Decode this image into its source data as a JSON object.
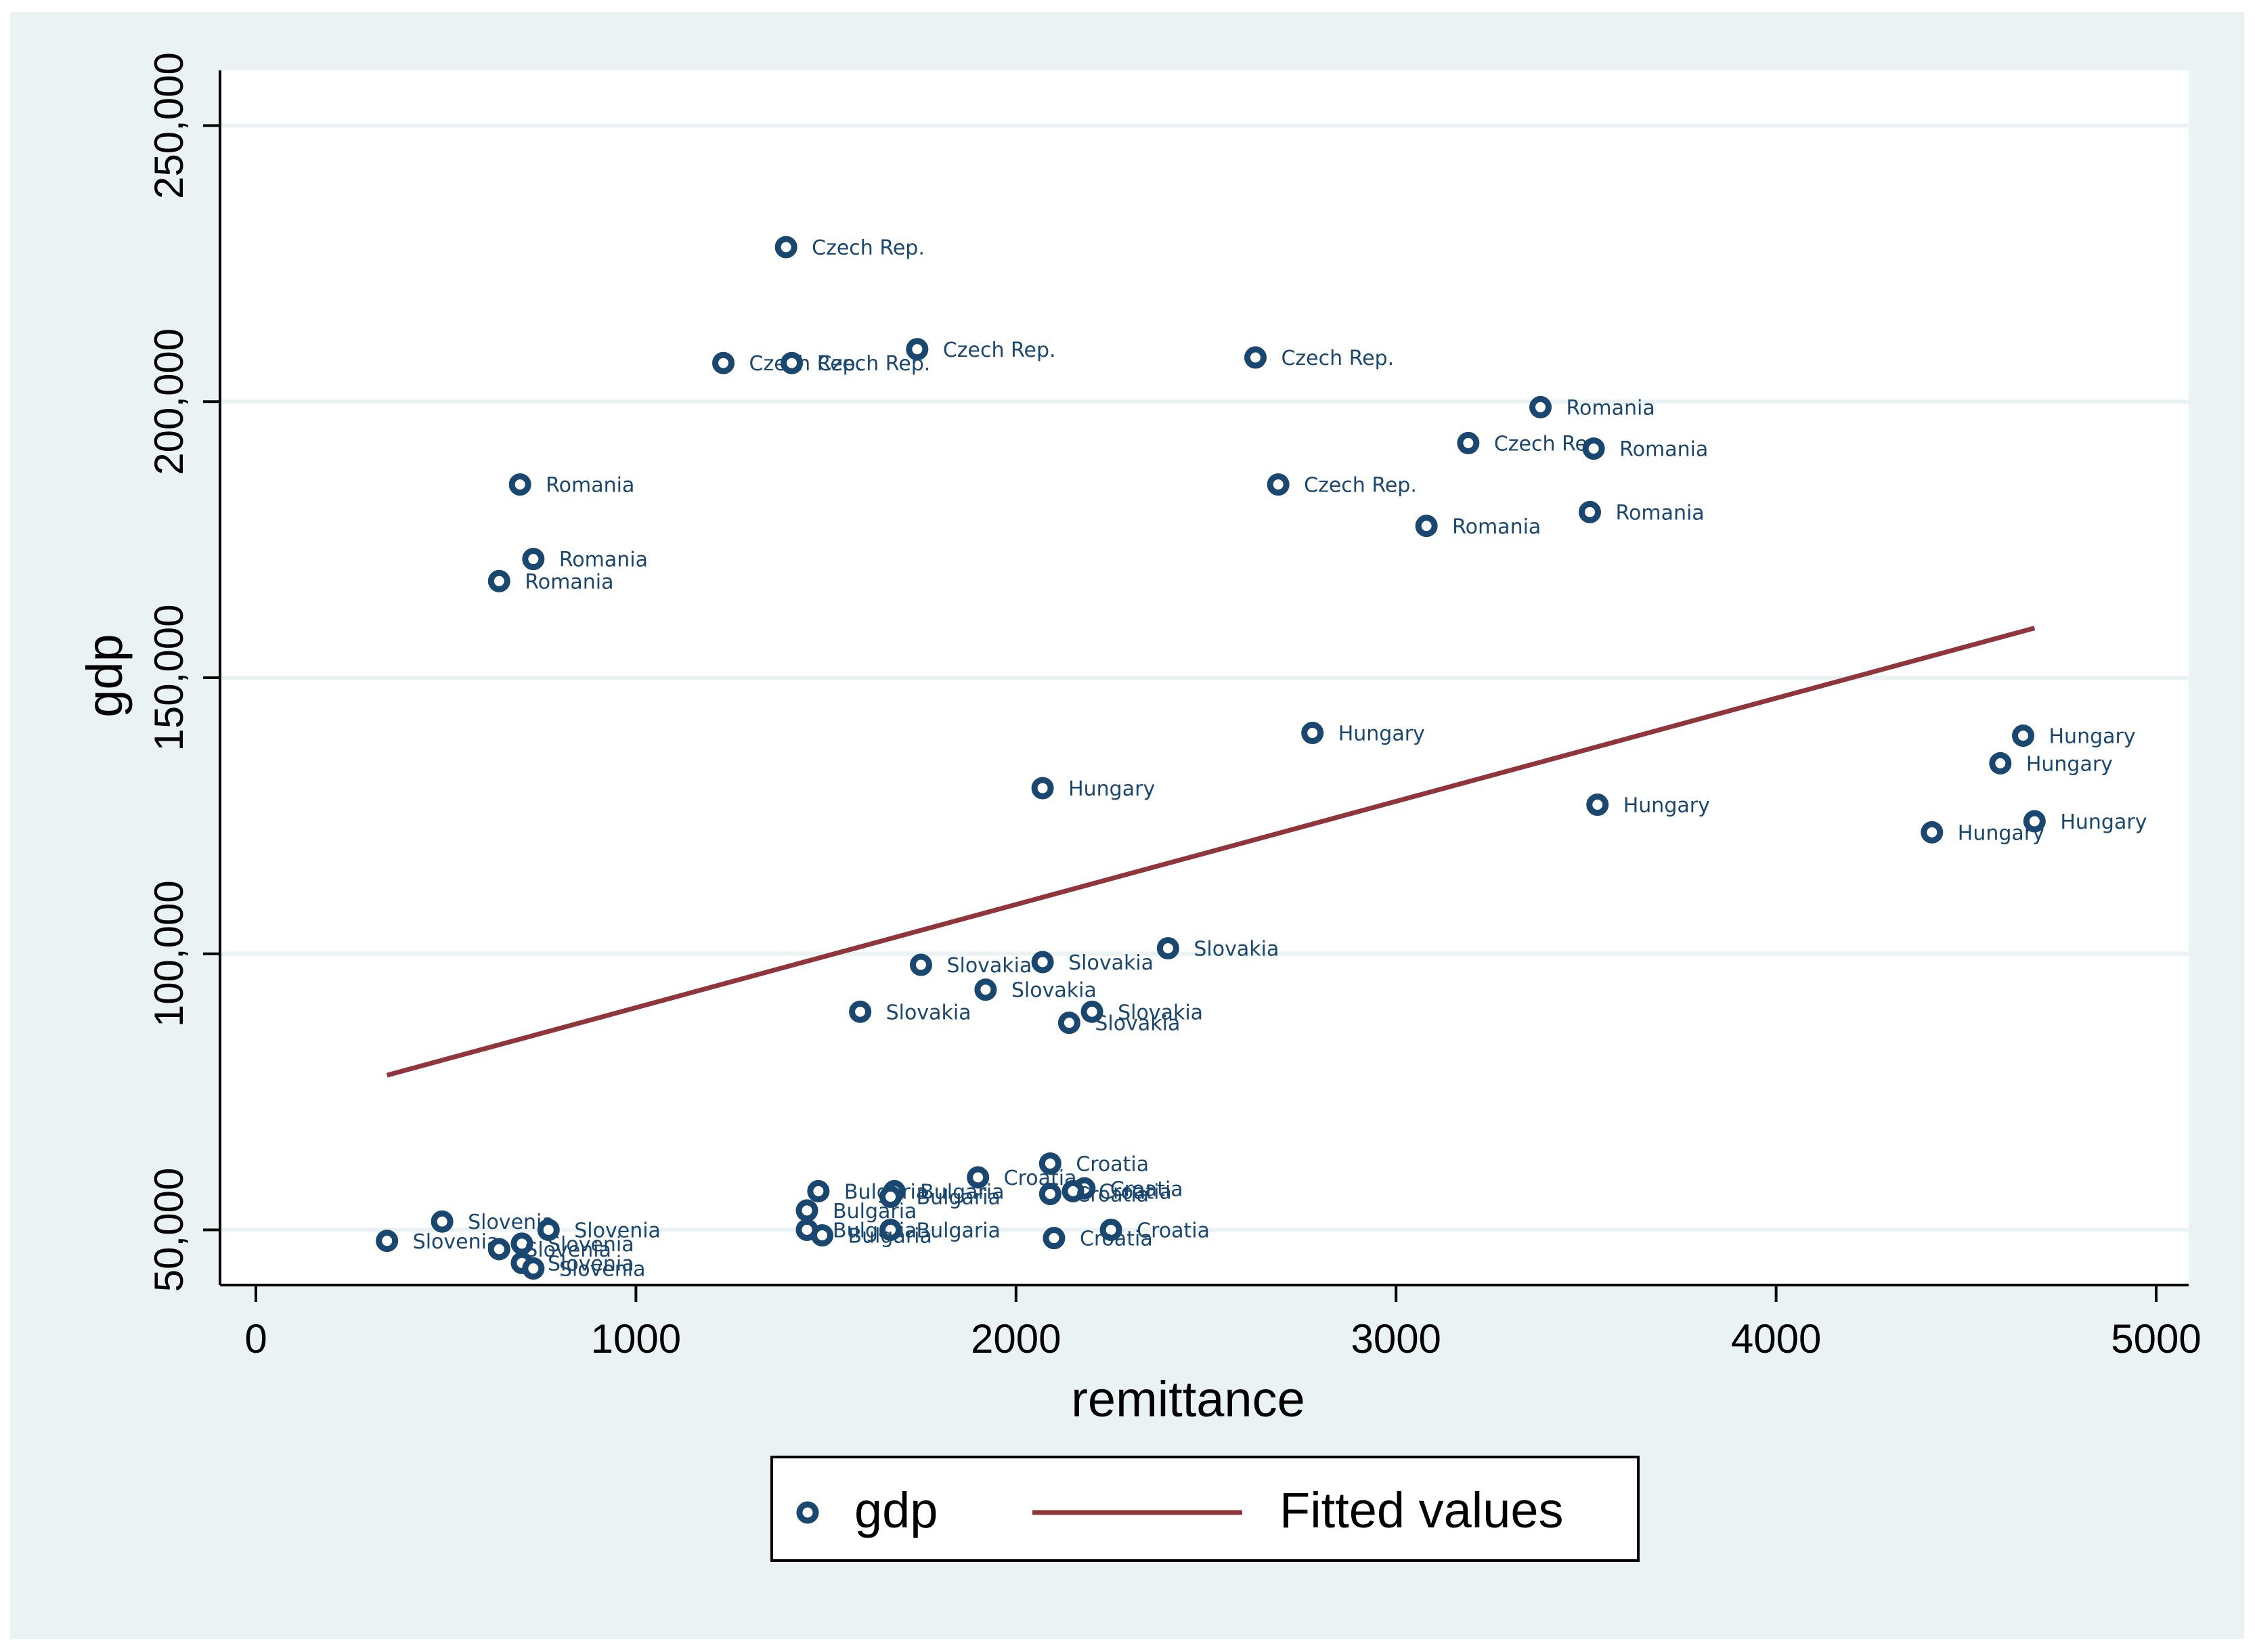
{
  "chart_data": {
    "type": "scatter",
    "title": "",
    "xlabel": "remittance",
    "ylabel": "gdp",
    "xlim": [
      0,
      5000
    ],
    "ylim": [
      40000,
      260000
    ],
    "x_ticks": [
      0,
      1000,
      2000,
      3000,
      4000,
      5000
    ],
    "x_tick_labels": [
      "0",
      "1000",
      "2000",
      "3000",
      "4000",
      "5000"
    ],
    "y_ticks": [
      50000,
      100000,
      150000,
      200000,
      250000
    ],
    "y_tick_labels": [
      "50,000",
      "100,000",
      "150,000",
      "200,000",
      "250,000"
    ],
    "grid": "horizontal",
    "legend_position": "bottom",
    "legend": [
      {
        "label": "gdp",
        "marker": "hollow-circle"
      },
      {
        "label": "Fitted values",
        "marker": "line"
      }
    ],
    "colors": {
      "outer_background": "#eaf2f3",
      "plot_background": "#ffffff",
      "marker": "#1a476f",
      "fitted_line": "#90353b",
      "gridline": "#eaf2f3",
      "axis": "#000000"
    },
    "series": [
      {
        "name": "gdp",
        "type": "scatter",
        "points": [
          {
            "x": 1395,
            "y": 228000,
            "label": "Czech Rep."
          },
          {
            "x": 1230,
            "y": 207000,
            "label": "Czech Rep."
          },
          {
            "x": 1410,
            "y": 207000,
            "label": "Czech Rep."
          },
          {
            "x": 1740,
            "y": 209500,
            "label": "Czech Rep."
          },
          {
            "x": 2630,
            "y": 208000,
            "label": "Czech Rep."
          },
          {
            "x": 3190,
            "y": 192500,
            "label": "Czech Rep."
          },
          {
            "x": 2690,
            "y": 185000,
            "label": "Czech Rep."
          },
          {
            "x": 3380,
            "y": 199000,
            "label": "Romania"
          },
          {
            "x": 3520,
            "y": 191500,
            "label": "Romania"
          },
          {
            "x": 3510,
            "y": 180000,
            "label": "Romania"
          },
          {
            "x": 3080,
            "y": 177500,
            "label": "Romania"
          },
          {
            "x": 695,
            "y": 185000,
            "label": "Romania"
          },
          {
            "x": 730,
            "y": 171500,
            "label": "Romania"
          },
          {
            "x": 640,
            "y": 167500,
            "label": "Romania"
          },
          {
            "x": 2780,
            "y": 140000,
            "label": "Hungary"
          },
          {
            "x": 2070,
            "y": 130000,
            "label": "Hungary"
          },
          {
            "x": 3530,
            "y": 127000,
            "label": "Hungary"
          },
          {
            "x": 4650,
            "y": 139500,
            "label": "Hungary"
          },
          {
            "x": 4590,
            "y": 134500,
            "label": "Hungary"
          },
          {
            "x": 4680,
            "y": 124000,
            "label": "Hungary"
          },
          {
            "x": 4410,
            "y": 122000,
            "label": "Hungary"
          },
          {
            "x": 2400,
            "y": 101000,
            "label": "Slovakia"
          },
          {
            "x": 1750,
            "y": 98000,
            "label": "Slovakia"
          },
          {
            "x": 2070,
            "y": 98500,
            "label": "Slovakia"
          },
          {
            "x": 1920,
            "y": 93500,
            "label": "Slovakia"
          },
          {
            "x": 1590,
            "y": 89500,
            "label": "Slovakia"
          },
          {
            "x": 2200,
            "y": 89500,
            "label": "Slovakia"
          },
          {
            "x": 2140,
            "y": 87500,
            "label": "Slovakia"
          },
          {
            "x": 2090,
            "y": 62000,
            "label": "Croatia"
          },
          {
            "x": 1900,
            "y": 59500,
            "label": "Croatia"
          },
          {
            "x": 2180,
            "y": 57500,
            "label": "Croatia"
          },
          {
            "x": 2150,
            "y": 57000,
            "label": "Croatia"
          },
          {
            "x": 2090,
            "y": 56500,
            "label": "Croatia"
          },
          {
            "x": 2250,
            "y": 50000,
            "label": "Croatia"
          },
          {
            "x": 2100,
            "y": 48500,
            "label": "Croatia"
          },
          {
            "x": 1480,
            "y": 57000,
            "label": "Bulgaria"
          },
          {
            "x": 1680,
            "y": 57000,
            "label": "Bulgaria"
          },
          {
            "x": 1670,
            "y": 56000,
            "label": "Bulgaria"
          },
          {
            "x": 1450,
            "y": 53500,
            "label": "Bulgaria"
          },
          {
            "x": 1450,
            "y": 50000,
            "label": "Bulgaria"
          },
          {
            "x": 1670,
            "y": 50000,
            "label": "Bulgaria"
          },
          {
            "x": 1490,
            "y": 49000,
            "label": "Bulgaria"
          },
          {
            "x": 490,
            "y": 51500,
            "label": "Slovenia"
          },
          {
            "x": 770,
            "y": 50000,
            "label": "Slovenia"
          },
          {
            "x": 700,
            "y": 47500,
            "label": "Slovenia"
          },
          {
            "x": 345,
            "y": 48000,
            "label": "Slovenia"
          },
          {
            "x": 640,
            "y": 46500,
            "label": "Slovenia"
          },
          {
            "x": 700,
            "y": 44000,
            "label": "Slovenia"
          },
          {
            "x": 730,
            "y": 43000,
            "label": "Slovenia"
          }
        ]
      },
      {
        "name": "Fitted values",
        "type": "line",
        "points": [
          {
            "x": 345,
            "y": 78000
          },
          {
            "x": 4680,
            "y": 159000
          }
        ]
      }
    ]
  }
}
